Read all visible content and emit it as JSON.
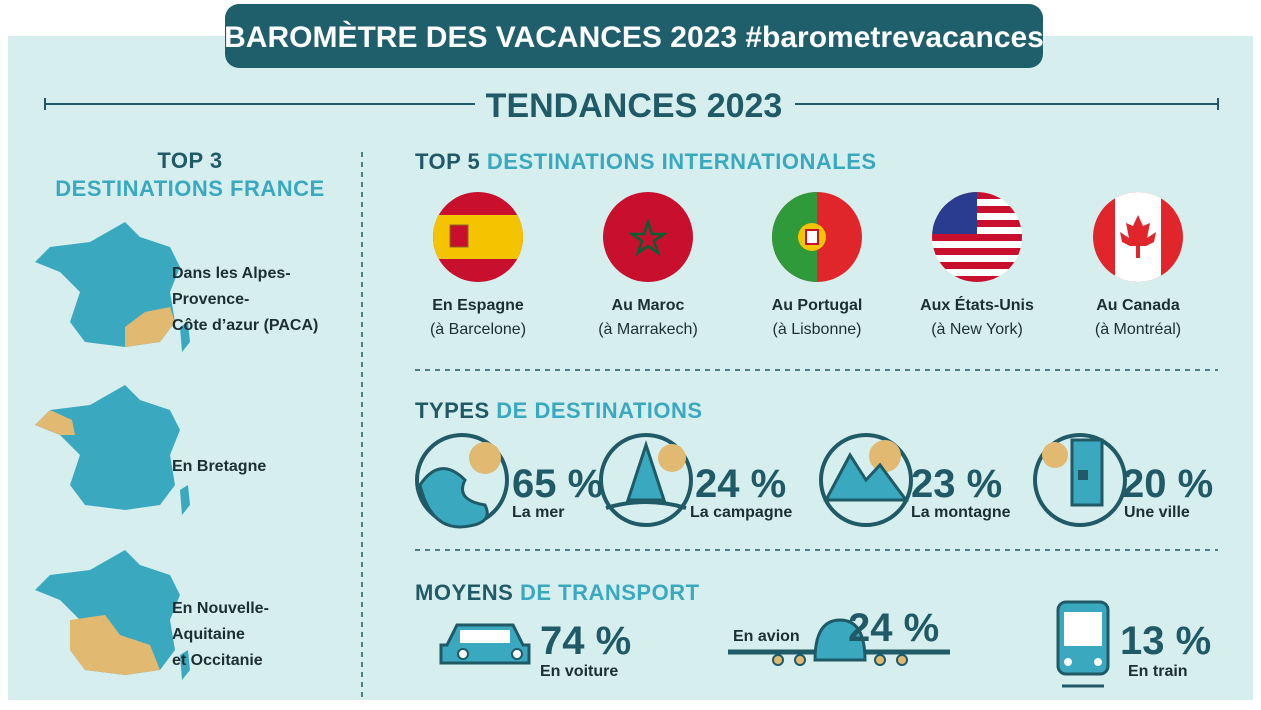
{
  "header": {
    "title": "BAROMÈTRE DES VACANCES 2023 #barometrevacances"
  },
  "subtitle": "TENDANCES 2023",
  "france": {
    "title_1": "TOP 3",
    "title_2": "DESTINATIONS FRANCE",
    "items": [
      {
        "label": [
          "Dans les Alpes-",
          "Provence-",
          "Côte d’azur (PACA)"
        ]
      },
      {
        "label": [
          "En Bretagne"
        ]
      },
      {
        "label": [
          "En Nouvelle-",
          "Aquitaine",
          "et Occitanie"
        ]
      }
    ]
  },
  "international": {
    "title_1": "TOP 5",
    "title_2": "DESTINATIONS INTERNATIONALES",
    "items": [
      {
        "country": "En Espagne",
        "city": "(à Barcelone)"
      },
      {
        "country": "Au Maroc",
        "city": "(à Marrakech)"
      },
      {
        "country": "Au Portugal",
        "city": "(à Lisbonne)"
      },
      {
        "country": "Aux États-Unis",
        "city": "(à New York)"
      },
      {
        "country": "Au Canada",
        "city": "(à Montréal)"
      }
    ]
  },
  "types": {
    "title_1": "TYPES",
    "title_2": "DE DESTINATIONS",
    "items": [
      {
        "value": "65 %",
        "label": "La mer"
      },
      {
        "value": "24 %",
        "label": "La campagne"
      },
      {
        "value": "23 %",
        "label": "La montagne"
      },
      {
        "value": "20 %",
        "label": "Une ville"
      }
    ]
  },
  "transport": {
    "title_1": "MOYENS",
    "title_2": "DE TRANSPORT",
    "items": [
      {
        "value": "74 %",
        "label": "En voiture"
      },
      {
        "value": "24 %",
        "label": "En avion"
      },
      {
        "value": "13 %",
        "label": "En train"
      }
    ]
  }
}
